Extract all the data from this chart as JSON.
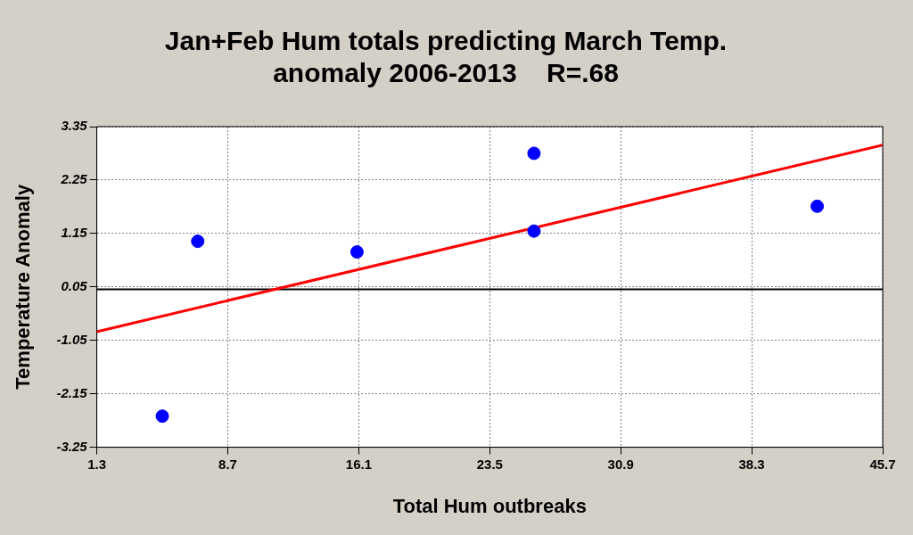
{
  "chart_data": {
    "type": "scatter",
    "title": "Jan+Feb Hum totals predicting March Temp.\nanomaly 2006-2013    R=.68",
    "xlabel": "Total Hum outbreaks",
    "ylabel": "Temperature Anomaly",
    "series": [
      {
        "color": "#0000ff",
        "marker": "circle",
        "x": [
          5,
          7,
          16,
          26,
          26,
          42
        ],
        "values": [
          -2.61,
          0.99,
          0.77,
          2.8,
          1.2,
          1.71
        ]
      },
      {
        "type": "line",
        "color": "#ff0000",
        "marker": "none",
        "x": [
          1.3,
          45.7
        ],
        "values": [
          -0.87,
          2.97
        ]
      }
    ],
    "xlim": [
      1.3,
      45.7
    ],
    "xticks": [
      1.3,
      8.7,
      16.1,
      23.5,
      30.9,
      38.3,
      45.7
    ],
    "ylim": [
      -3.25,
      3.35
    ],
    "yticks": [
      -3.25,
      -2.15,
      -1.05,
      0.05,
      1.15,
      2.25,
      3.35
    ],
    "ref_lines": [
      {
        "axis": "y",
        "value": 0,
        "color": "#000000"
      }
    ],
    "grid": true,
    "legend": false
  }
}
